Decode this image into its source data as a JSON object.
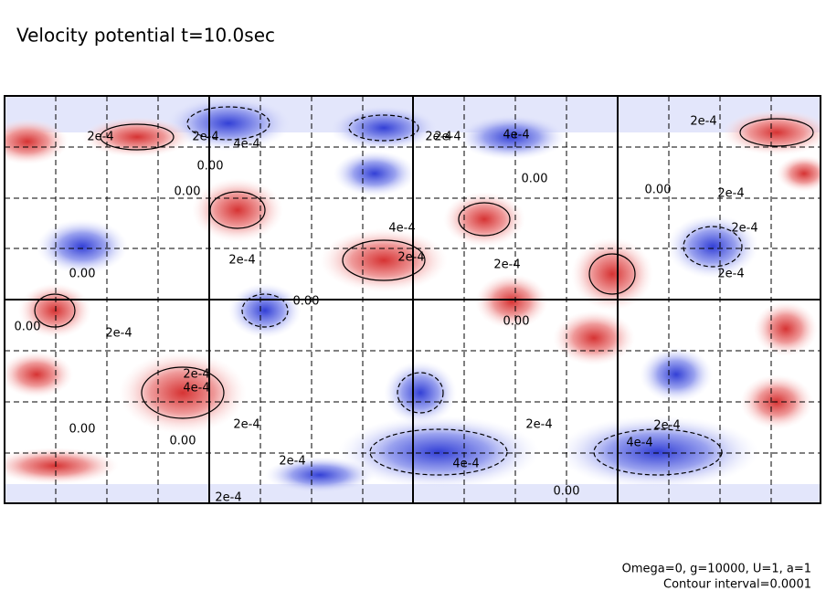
{
  "chart_data": {
    "type": "contour",
    "title": "Velocity potential t=10.0sec",
    "notes": [
      "Omega=0, g=10000, U=1, a=1",
      "Contour interval=0.0001"
    ],
    "contour_labels": [
      "2e-4",
      "2e-4",
      "4e-4",
      "0.00",
      "0.00",
      "4e-4",
      "2e-4",
      "0.00",
      "2e-4",
      "0.00",
      "2e-4",
      "2e-4",
      "2e-4",
      "4e-4",
      "2e-4",
      "0.00",
      "2e-4",
      "2e-4",
      "2e-4",
      "0.00",
      "0.00",
      "2e-4",
      "4e-4",
      "0.00",
      "2e-4",
      "0.00",
      "0.00",
      "2e-4",
      "4e-4",
      "2e-4",
      "2e-4",
      "4e-4",
      "2e-4",
      "0.00",
      "2e-4"
    ]
  }
}
